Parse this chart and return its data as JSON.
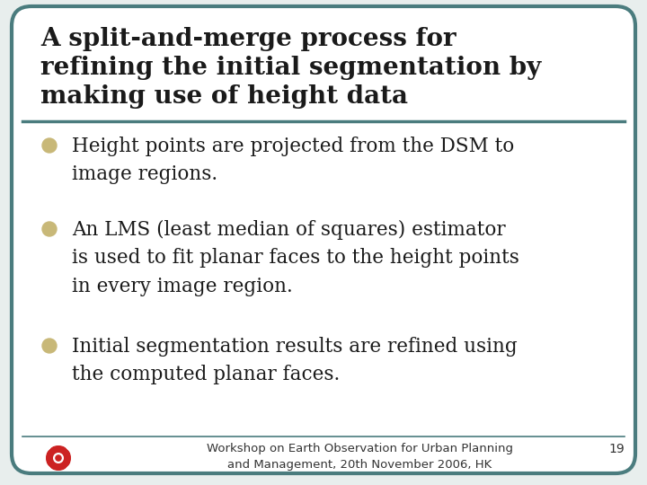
{
  "bg_color": "#e8eeed",
  "border_color": "#4a7c7e",
  "title_lines": [
    "A split-and-merge process for",
    "refining the initial segmentation by",
    "making use of height data"
  ],
  "title_fontsize": 20,
  "title_color": "#1a1a1a",
  "divider_color": "#4a7c7e",
  "bullet_color": "#c8b878",
  "bullet_points": [
    "Height points are projected from the DSM to\nimage regions.",
    "An LMS (least median of squares) estimator\nis used to fit planar faces to the height points\nin every image region.",
    "Initial segmentation results are refined using\nthe computed planar faces."
  ],
  "bullet_fontsize": 15.5,
  "bullet_text_color": "#1a1a1a",
  "footer_text": "Workshop on Earth Observation for Urban Planning\nand Management, 20th November 2006, HK",
  "footer_fontsize": 9.5,
  "footer_color": "#333333",
  "page_number": "19",
  "page_number_fontsize": 10,
  "logo_color_red": "#cc2222"
}
